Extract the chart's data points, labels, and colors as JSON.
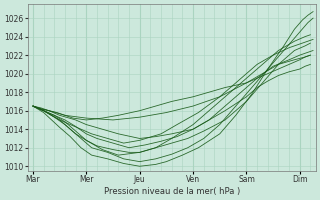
{
  "bg_color": "#cce8dc",
  "grid_color": "#aad4c0",
  "line_color": "#1a5c1a",
  "xlabel_text": "Pression niveau de la mer( hPa )",
  "xtick_labels": [
    "Mar",
    "Mer",
    "Jeu",
    "Ven",
    "Sam",
    "Dim"
  ],
  "xtick_positions": [
    0,
    1,
    2,
    3,
    4,
    5
  ],
  "ylim": [
    1009.5,
    1027.5
  ],
  "yticks": [
    1010,
    1012,
    1014,
    1016,
    1018,
    1020,
    1022,
    1024,
    1026
  ],
  "xlim": [
    -0.1,
    5.3
  ],
  "lines": [
    {
      "x": [
        0.0,
        0.15,
        0.3,
        0.45,
        0.6,
        0.75,
        1.0,
        1.3,
        1.6,
        2.0,
        2.3,
        2.6,
        3.0,
        3.3,
        3.6,
        4.0,
        4.2,
        4.4,
        4.6,
        4.8,
        5.0,
        5.1,
        5.2
      ],
      "y": [
        1016.5,
        1016.3,
        1016.0,
        1015.8,
        1015.5,
        1015.2,
        1015.0,
        1015.2,
        1015.5,
        1016.0,
        1016.5,
        1017.0,
        1017.5,
        1018.0,
        1018.5,
        1019.0,
        1019.5,
        1020.0,
        1020.5,
        1021.0,
        1021.5,
        1021.8,
        1022.0
      ]
    },
    {
      "x": [
        0.0,
        0.15,
        0.3,
        0.5,
        0.8,
        1.0,
        1.3,
        1.6,
        2.0,
        2.3,
        2.6,
        3.0,
        3.3,
        3.6,
        4.0,
        4.2,
        4.4,
        4.6,
        4.8,
        5.0,
        5.1,
        5.2
      ],
      "y": [
        1016.5,
        1016.2,
        1016.0,
        1015.5,
        1015.0,
        1014.5,
        1014.0,
        1013.5,
        1013.0,
        1013.2,
        1013.5,
        1014.0,
        1015.0,
        1016.0,
        1017.5,
        1018.5,
        1019.2,
        1019.8,
        1020.2,
        1020.5,
        1020.8,
        1021.0
      ]
    },
    {
      "x": [
        0.0,
        0.2,
        0.4,
        0.6,
        0.8,
        1.0,
        1.2,
        1.5,
        1.8,
        2.1,
        2.4,
        2.7,
        3.0,
        3.3,
        3.6,
        3.9,
        4.2,
        4.5,
        4.8,
        5.0,
        5.15,
        5.25
      ],
      "y": [
        1016.5,
        1016.0,
        1015.5,
        1015.0,
        1014.3,
        1013.5,
        1013.0,
        1012.5,
        1012.0,
        1012.3,
        1012.7,
        1013.2,
        1014.0,
        1015.0,
        1016.5,
        1018.0,
        1019.5,
        1020.8,
        1021.5,
        1022.0,
        1022.3,
        1022.5
      ]
    },
    {
      "x": [
        0.0,
        0.2,
        0.4,
        0.6,
        0.8,
        1.0,
        1.2,
        1.5,
        1.8,
        2.0,
        2.3,
        2.6,
        3.0,
        3.3,
        3.6,
        4.0,
        4.3,
        4.6,
        4.9,
        5.1,
        5.2
      ],
      "y": [
        1016.5,
        1016.0,
        1015.3,
        1014.5,
        1013.5,
        1012.8,
        1012.2,
        1011.8,
        1011.5,
        1011.5,
        1012.0,
        1013.0,
        1014.5,
        1016.0,
        1017.5,
        1019.5,
        1021.0,
        1022.5,
        1023.5,
        1024.0,
        1024.2
      ]
    },
    {
      "x": [
        0.0,
        0.2,
        0.35,
        0.5,
        0.7,
        0.9,
        1.1,
        1.4,
        1.7,
        2.0,
        2.3,
        2.6,
        2.9,
        3.2,
        3.5,
        3.8,
        4.1,
        4.4,
        4.7,
        5.0,
        5.15,
        5.25
      ],
      "y": [
        1016.5,
        1016.0,
        1015.5,
        1015.0,
        1014.0,
        1013.0,
        1012.0,
        1011.5,
        1010.8,
        1010.5,
        1010.8,
        1011.3,
        1012.0,
        1013.0,
        1014.5,
        1016.5,
        1018.5,
        1020.5,
        1022.5,
        1024.5,
        1025.5,
        1026.0
      ]
    },
    {
      "x": [
        0.0,
        0.2,
        0.35,
        0.5,
        0.7,
        0.9,
        1.1,
        1.4,
        1.7,
        2.0,
        2.3,
        2.5,
        2.8,
        3.1,
        3.5,
        3.8,
        4.1,
        4.4,
        4.7,
        4.9,
        5.05,
        5.15,
        5.25
      ],
      "y": [
        1016.5,
        1015.8,
        1015.0,
        1014.2,
        1013.2,
        1012.0,
        1011.2,
        1010.8,
        1010.3,
        1010.0,
        1010.2,
        1010.5,
        1011.2,
        1012.0,
        1013.5,
        1015.5,
        1017.8,
        1020.5,
        1023.0,
        1024.8,
        1025.8,
        1026.3,
        1026.7
      ]
    },
    {
      "x": [
        0.0,
        0.2,
        0.4,
        0.6,
        0.8,
        1.0,
        1.3,
        1.6,
        2.0,
        2.3,
        2.6,
        2.9,
        3.2,
        3.6,
        4.0,
        4.3,
        4.6,
        4.9,
        5.1,
        5.2
      ],
      "y": [
        1016.5,
        1016.0,
        1015.5,
        1014.8,
        1013.8,
        1012.8,
        1011.8,
        1011.2,
        1011.5,
        1012.0,
        1012.5,
        1013.0,
        1013.8,
        1015.0,
        1017.0,
        1019.0,
        1021.0,
        1022.5,
        1023.0,
        1023.3
      ]
    },
    {
      "x": [
        0.0,
        0.15,
        0.3,
        0.6,
        1.0,
        1.5,
        2.0,
        2.5,
        3.0,
        3.5,
        4.0,
        4.3,
        4.6,
        4.9,
        5.1,
        5.2
      ],
      "y": [
        1016.5,
        1016.2,
        1016.0,
        1015.5,
        1015.2,
        1015.0,
        1015.3,
        1015.8,
        1016.5,
        1017.5,
        1019.0,
        1020.0,
        1021.0,
        1021.5,
        1021.8,
        1022.0
      ]
    },
    {
      "x": [
        0.0,
        0.2,
        0.35,
        0.5,
        0.7,
        0.9,
        1.1,
        1.4,
        1.7,
        2.0,
        2.4,
        2.7,
        3.1,
        3.5,
        3.9,
        4.2,
        4.5,
        4.8,
        5.0,
        5.15,
        5.25
      ],
      "y": [
        1016.5,
        1016.0,
        1015.5,
        1015.0,
        1014.5,
        1014.0,
        1013.5,
        1013.0,
        1012.5,
        1012.8,
        1013.5,
        1014.5,
        1015.8,
        1017.5,
        1019.5,
        1021.0,
        1022.0,
        1022.8,
        1023.2,
        1023.5,
        1023.7
      ]
    }
  ]
}
